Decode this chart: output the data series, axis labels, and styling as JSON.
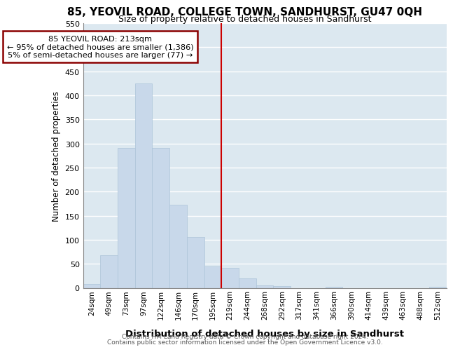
{
  "title1": "85, YEOVIL ROAD, COLLEGE TOWN, SANDHURST, GU47 0QH",
  "title2": "Size of property relative to detached houses in Sandhurst",
  "xlabel": "Distribution of detached houses by size in Sandhurst",
  "ylabel": "Number of detached properties",
  "annotation_line1": "85 YEOVIL ROAD: 213sqm",
  "annotation_line2": "← 95% of detached houses are smaller (1,386)",
  "annotation_line3": "5% of semi-detached houses are larger (77) →",
  "footer1": "Contains HM Land Registry data © Crown copyright and database right 2024.",
  "footer2": "Contains public sector information licensed under the Open Government Licence v3.0.",
  "bar_color": "#c8d8ea",
  "bar_edge_color": "#adc4d9",
  "annotation_box_color": "#8b0000",
  "reference_line_color": "#cc0000",
  "categories": [
    "24sqm",
    "49sqm",
    "73sqm",
    "97sqm",
    "122sqm",
    "146sqm",
    "170sqm",
    "195sqm",
    "219sqm",
    "244sqm",
    "268sqm",
    "292sqm",
    "317sqm",
    "341sqm",
    "366sqm",
    "390sqm",
    "414sqm",
    "439sqm",
    "463sqm",
    "488sqm",
    "512sqm"
  ],
  "values": [
    8,
    68,
    290,
    425,
    290,
    173,
    105,
    45,
    42,
    20,
    5,
    3,
    0,
    0,
    2,
    0,
    0,
    0,
    0,
    0,
    2
  ],
  "ylim": [
    0,
    550
  ],
  "yticks": [
    0,
    50,
    100,
    150,
    200,
    250,
    300,
    350,
    400,
    450,
    500,
    550
  ],
  "ref_bin_index": 8,
  "bg_color": "#dce8f0",
  "grid_color": "white",
  "title1_fontsize": 11,
  "title2_fontsize": 9
}
